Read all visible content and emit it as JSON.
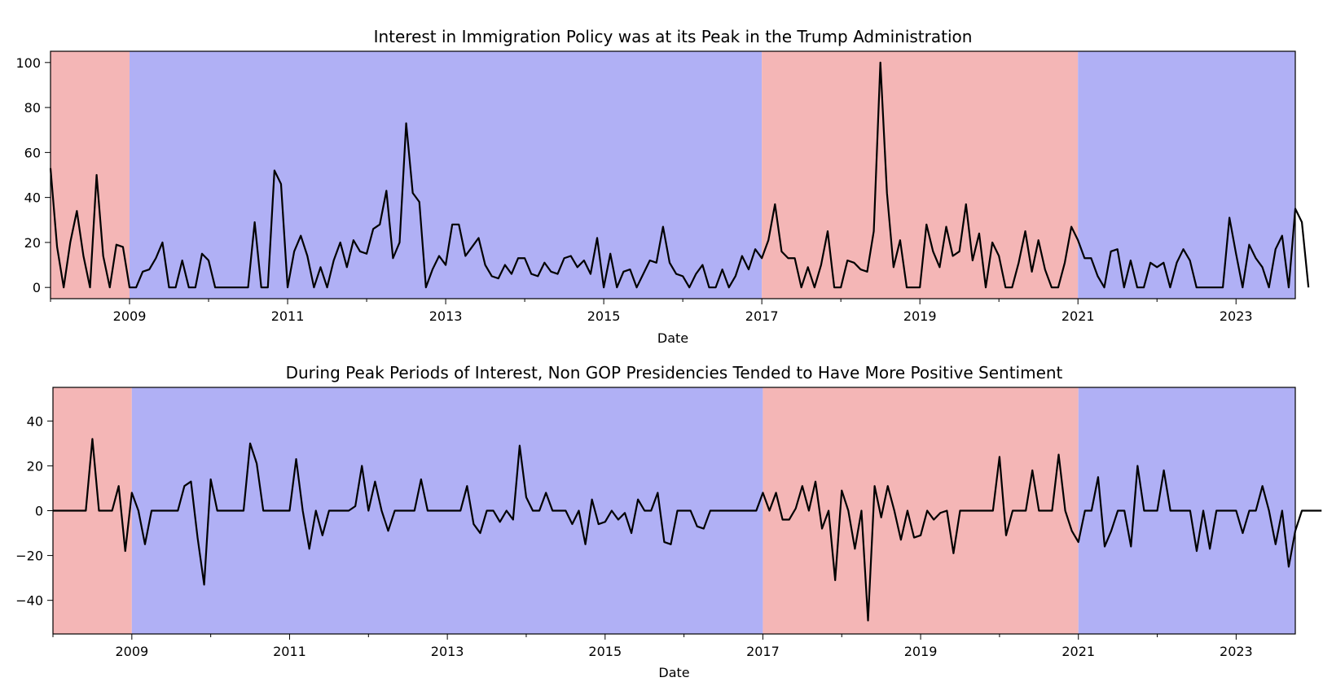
{
  "chart_data": [
    {
      "type": "line",
      "title": "Interest in Immigration Policy was at its Peak in the Trump Administration",
      "xlabel": "Date",
      "ylabel": "",
      "xlim": [
        "2008-01",
        "2023-10"
      ],
      "ylim": [
        -5,
        105
      ],
      "x_ticks": [
        "2009",
        "2011",
        "2013",
        "2015",
        "2017",
        "2019",
        "2021",
        "2023"
      ],
      "y_ticks": [
        "0",
        "20",
        "40",
        "60",
        "80",
        "100"
      ],
      "series": [
        {
          "color": "#000000",
          "x": [
            "2008-01",
            "2009-01",
            "2010-01",
            "2011-01",
            "2012-01",
            "2013-01",
            "2014-01",
            "2015-01",
            "2016-01",
            "2017-01",
            "2018-01",
            "2019-01",
            "2020-01",
            "2021-01",
            "2022-01",
            "2023-01"
          ],
          "values": [
            53,
            0,
            15,
            15,
            27,
            28,
            6,
            15,
            0,
            21,
            12,
            28,
            0,
            13,
            10,
            19
          ],
          "monthly_values": [
            53,
            18,
            0,
            20,
            34,
            14,
            0,
            50,
            14,
            0,
            19,
            18,
            0,
            0,
            7,
            8,
            13,
            20,
            0,
            0,
            12,
            0,
            0,
            15,
            12,
            0,
            0,
            0,
            0,
            0,
            0,
            29,
            0,
            0,
            52,
            46,
            0,
            16,
            23,
            14,
            0,
            9,
            0,
            12,
            20,
            9,
            21,
            16,
            15,
            26,
            28,
            43,
            13,
            20,
            73,
            42,
            38,
            0,
            8,
            14,
            10,
            28,
            28,
            14,
            18,
            22,
            10,
            5,
            4,
            10,
            6,
            13,
            13,
            6,
            5,
            11,
            7,
            6,
            13,
            14,
            9,
            12,
            6,
            22,
            0,
            15,
            0,
            7,
            8,
            0,
            6,
            12,
            11,
            27,
            11,
            6,
            5,
            0,
            6,
            10,
            0,
            0,
            8,
            0,
            5,
            14,
            8,
            17,
            13,
            21,
            37,
            16,
            13,
            13,
            0,
            9,
            0,
            10,
            25,
            0,
            0,
            12,
            11,
            8,
            7,
            25,
            100,
            42,
            9,
            21,
            0,
            0,
            0,
            28,
            16,
            9,
            27,
            14,
            16,
            37,
            12,
            24,
            0,
            20,
            14,
            0,
            0,
            11,
            25,
            7,
            21,
            8,
            0,
            0,
            11,
            27,
            21,
            13,
            13,
            5,
            0,
            16,
            17,
            0,
            12,
            0,
            0,
            11,
            9,
            11,
            0,
            11,
            17,
            12,
            0,
            0,
            0,
            0,
            0,
            31,
            15,
            0,
            19,
            13,
            9,
            0,
            17,
            23,
            0,
            35,
            29,
            0
          ]
        }
      ],
      "shaded_periods": [
        {
          "start": "2008-01",
          "end": "2009-01",
          "party": "GOP",
          "color": "#f4b6b6"
        },
        {
          "start": "2009-01",
          "end": "2017-01",
          "party": "Non GOP",
          "color": "#b0b0f5"
        },
        {
          "start": "2017-01",
          "end": "2021-01",
          "party": "GOP",
          "color": "#f4b6b6"
        },
        {
          "start": "2021-01",
          "end": "2023-10",
          "party": "Non GOP",
          "color": "#b0b0f5"
        }
      ]
    },
    {
      "type": "line",
      "title": "During Peak Periods of Interest, Non GOP Presidencies Tended to Have More Positive Sentiment",
      "xlabel": "Date",
      "ylabel": "",
      "xlim": [
        "2008-01",
        "2023-10"
      ],
      "ylim": [
        -55,
        55
      ],
      "x_ticks": [
        "2009",
        "2011",
        "2013",
        "2015",
        "2017",
        "2019",
        "2021",
        "2023"
      ],
      "y_ticks": [
        "−40",
        "−20",
        "0",
        "20",
        "40"
      ],
      "series": [
        {
          "color": "#000000",
          "x": [
            "2008-01",
            "2009-01",
            "2010-01",
            "2011-01",
            "2012-01",
            "2013-01",
            "2014-01",
            "2015-01",
            "2016-01",
            "2017-01",
            "2018-01",
            "2019-01",
            "2020-01",
            "2021-01",
            "2022-01",
            "2023-01"
          ],
          "values": [
            0,
            8,
            14,
            23,
            0,
            0,
            0,
            -5,
            0,
            -4,
            0,
            -3,
            0,
            -16,
            0,
            0
          ],
          "monthly_values": [
            0,
            0,
            0,
            0,
            0,
            0,
            32,
            0,
            0,
            0,
            11,
            -18,
            8,
            0,
            -15,
            0,
            0,
            0,
            0,
            0,
            11,
            13,
            -12,
            -33,
            14,
            0,
            0,
            0,
            0,
            0,
            30,
            21,
            0,
            0,
            0,
            0,
            0,
            23,
            0,
            -17,
            0,
            -11,
            0,
            0,
            0,
            0,
            2,
            20,
            0,
            13,
            0,
            -9,
            0,
            0,
            0,
            0,
            14,
            0,
            0,
            0,
            0,
            0,
            0,
            11,
            -6,
            -10,
            0,
            0,
            -5,
            0,
            -4,
            29,
            6,
            0,
            0,
            8,
            0,
            0,
            0,
            -6,
            0,
            -15,
            5,
            -6,
            -5,
            0,
            -4,
            -1,
            -10,
            5,
            0,
            0,
            8,
            -14,
            -15,
            0,
            0,
            0,
            -7,
            -8,
            0,
            0,
            0,
            0,
            0,
            0,
            0,
            0,
            8,
            0,
            8,
            -4,
            -4,
            1,
            11,
            0,
            13,
            -8,
            0,
            -31,
            9,
            0,
            -17,
            0,
            -49,
            11,
            -3,
            11,
            0,
            -13,
            0,
            -12,
            -11,
            0,
            -4,
            -1,
            0,
            -19,
            0,
            0,
            0,
            0,
            0,
            0,
            24,
            -11,
            0,
            0,
            0,
            18,
            0,
            0,
            0,
            25,
            0,
            -9,
            -14,
            0,
            0,
            15,
            -16,
            -9,
            0,
            0,
            -16,
            20,
            0,
            0,
            0,
            18,
            0,
            0,
            0,
            0,
            -18,
            0,
            -17,
            0,
            0,
            0,
            0,
            -10,
            0,
            0,
            11,
            0,
            -15,
            0,
            -25,
            -9,
            0,
            0,
            0,
            0
          ]
        }
      ],
      "shaded_periods": [
        {
          "start": "2008-01",
          "end": "2009-01",
          "party": "GOP",
          "color": "#f4b6b6"
        },
        {
          "start": "2009-01",
          "end": "2017-01",
          "party": "Non GOP",
          "color": "#b0b0f5"
        },
        {
          "start": "2017-01",
          "end": "2021-01",
          "party": "GOP",
          "color": "#f4b6b6"
        },
        {
          "start": "2021-01",
          "end": "2023-10",
          "party": "Non GOP",
          "color": "#b0b0f5"
        }
      ]
    }
  ]
}
